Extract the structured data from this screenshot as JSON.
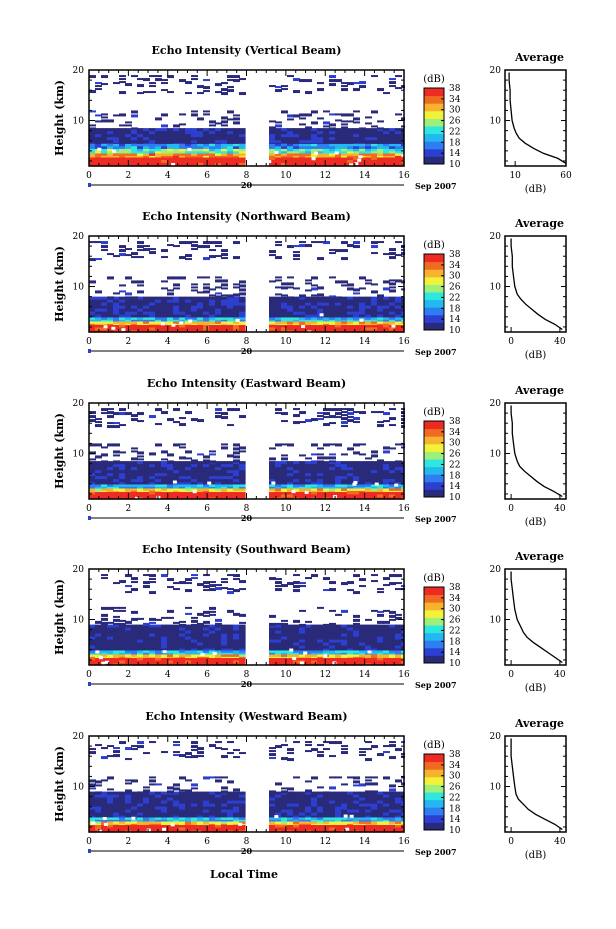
{
  "chart_data": {
    "type": "heatmap",
    "figure_xlabel": "Local Time",
    "date_marker": "20",
    "date_suffix": "Sep 2007",
    "x_ticks": [
      0,
      2,
      4,
      6,
      8,
      10,
      12,
      14,
      16
    ],
    "xlim": [
      0,
      16
    ],
    "ylim": [
      1,
      20
    ],
    "y_ticks": [
      10,
      20
    ],
    "ylabel": "Height (km)",
    "data_gap_hours": [
      8.1,
      9.0
    ],
    "colorbar": {
      "unit": "(dB)",
      "ticks": [
        10,
        14,
        18,
        22,
        26,
        30,
        34,
        38
      ],
      "range": [
        10,
        38
      ],
      "colors": [
        "#2a2a7a",
        "#2c3fd0",
        "#2f7df2",
        "#24b8f0",
        "#2ee8e0",
        "#9ef07a",
        "#f2f23a",
        "#f7b32d",
        "#f06a22",
        "#ee2b23"
      ]
    },
    "panels": [
      {
        "title": "Echo Intensity (Vertical Beam)",
        "layers": [
          {
            "bottom": 1.0,
            "top": 2.8,
            "value": 38
          },
          {
            "bottom": 2.8,
            "top": 3.6,
            "value": 32
          },
          {
            "bottom": 3.6,
            "top": 4.5,
            "value": 24
          },
          {
            "bottom": 4.5,
            "top": 5.5,
            "value": 18
          },
          {
            "bottom": 5.5,
            "top": 8.5,
            "value": 11
          },
          {
            "bottom": 8.5,
            "top": 12.0,
            "value": 10,
            "sparse": true
          },
          {
            "bottom": 15.5,
            "top": 19.0,
            "value": 10,
            "sparse": true
          }
        ],
        "average": {
          "title": "Average",
          "xlabel": "(dB)",
          "x_ticks": [
            10,
            60
          ],
          "xlim": [
            0,
            60
          ],
          "height_km": [
            1.5,
            2.5,
            3.5,
            4.5,
            5.5,
            6.5,
            7.5,
            8.5,
            10,
            12,
            14,
            16,
            18,
            19.5
          ],
          "db": [
            60,
            52,
            38,
            28,
            20,
            14,
            11,
            9,
            7,
            6,
            5,
            5,
            4,
            4
          ]
        }
      },
      {
        "title": "Echo Intensity (Northward Beam)",
        "layers": [
          {
            "bottom": 1.0,
            "top": 2.5,
            "value": 38
          },
          {
            "bottom": 2.5,
            "top": 3.2,
            "value": 30
          },
          {
            "bottom": 3.2,
            "top": 4.0,
            "value": 20
          },
          {
            "bottom": 4.0,
            "top": 8.0,
            "value": 11
          },
          {
            "bottom": 8.0,
            "top": 12.0,
            "value": 10,
            "sparse": true
          },
          {
            "bottom": 15.5,
            "top": 19.0,
            "value": 10,
            "sparse": true
          }
        ],
        "average": {
          "title": "Average",
          "xlabel": "(dB)",
          "x_ticks": [
            0,
            40
          ],
          "xlim": [
            -5,
            45
          ],
          "height_km": [
            1.5,
            2.5,
            3.5,
            4.5,
            5.5,
            6.5,
            7.5,
            8.5,
            10,
            12,
            14,
            16,
            18,
            19.5
          ],
          "db": [
            42,
            36,
            28,
            22,
            17,
            12,
            8,
            5,
            3,
            2,
            1,
            1,
            0,
            0
          ]
        }
      },
      {
        "title": "Echo Intensity (Eastward Beam)",
        "layers": [
          {
            "bottom": 1.0,
            "top": 2.5,
            "value": 38
          },
          {
            "bottom": 2.5,
            "top": 3.2,
            "value": 30
          },
          {
            "bottom": 3.2,
            "top": 4.0,
            "value": 20
          },
          {
            "bottom": 4.0,
            "top": 8.5,
            "value": 11
          },
          {
            "bottom": 8.5,
            "top": 12.0,
            "value": 10,
            "sparse": true
          },
          {
            "bottom": 15.5,
            "top": 19.0,
            "value": 10,
            "sparse": true
          }
        ],
        "average": {
          "title": "Average",
          "xlabel": "(dB)",
          "x_ticks": [
            0,
            40
          ],
          "xlim": [
            -5,
            45
          ],
          "height_km": [
            1.5,
            2.5,
            3.5,
            4.5,
            5.5,
            6.5,
            7.5,
            8.5,
            10,
            12,
            14,
            16,
            18,
            19.5
          ],
          "db": [
            42,
            35,
            27,
            21,
            16,
            11,
            7,
            5,
            3,
            2,
            1,
            1,
            0,
            0
          ]
        }
      },
      {
        "title": "Echo Intensity (Southward Beam)",
        "layers": [
          {
            "bottom": 1.0,
            "top": 2.5,
            "value": 38
          },
          {
            "bottom": 2.5,
            "top": 3.2,
            "value": 30
          },
          {
            "bottom": 3.2,
            "top": 4.0,
            "value": 20
          },
          {
            "bottom": 4.0,
            "top": 9.0,
            "value": 11
          },
          {
            "bottom": 9.0,
            "top": 12.5,
            "value": 10,
            "sparse": true
          },
          {
            "bottom": 15.5,
            "top": 19.0,
            "value": 10,
            "sparse": true
          }
        ],
        "average": {
          "title": "Average",
          "xlabel": "(dB)",
          "x_ticks": [
            0,
            40
          ],
          "xlim": [
            -5,
            45
          ],
          "height_km": [
            1.5,
            2.5,
            3.5,
            4.5,
            5.5,
            6.5,
            7.5,
            8.5,
            10,
            12,
            14,
            16,
            18,
            19.5
          ],
          "db": [
            42,
            36,
            30,
            24,
            18,
            13,
            10,
            8,
            5,
            3,
            2,
            1,
            0,
            0
          ]
        }
      },
      {
        "title": "Echo Intensity (Westward Beam)",
        "layers": [
          {
            "bottom": 1.0,
            "top": 2.5,
            "value": 38
          },
          {
            "bottom": 2.5,
            "top": 3.2,
            "value": 30
          },
          {
            "bottom": 3.2,
            "top": 4.0,
            "value": 20
          },
          {
            "bottom": 4.0,
            "top": 9.0,
            "value": 11
          },
          {
            "bottom": 9.0,
            "top": 12.0,
            "value": 10,
            "sparse": true
          },
          {
            "bottom": 15.5,
            "top": 19.0,
            "value": 10,
            "sparse": true
          }
        ],
        "average": {
          "title": "Average",
          "xlabel": "(dB)",
          "x_ticks": [
            0,
            40
          ],
          "xlim": [
            -5,
            45
          ],
          "height_km": [
            1.5,
            2.5,
            3.5,
            4.5,
            5.5,
            6.5,
            7.5,
            8.5,
            10,
            12,
            14,
            16,
            18,
            19.5
          ],
          "db": [
            42,
            36,
            28,
            20,
            14,
            10,
            6,
            4,
            3,
            2,
            1,
            0,
            0,
            0
          ]
        }
      }
    ]
  }
}
